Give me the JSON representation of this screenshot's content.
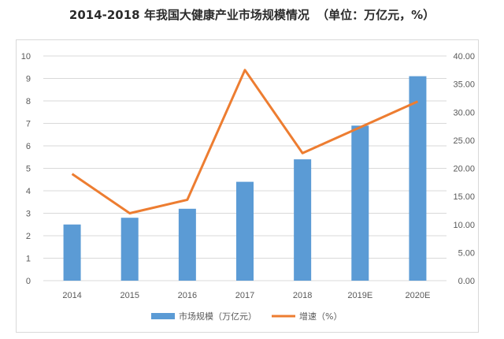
{
  "title": {
    "main": "2014-2018 年我国大健康产业市场规模情况",
    "unit": "（单位：万亿元，%）"
  },
  "colors": {
    "bar": "#5b9bd5",
    "line": "#ed7d31",
    "grid": "#d9d9d9",
    "axis_text": "#595959"
  },
  "chart_data": {
    "type": "bar",
    "categories": [
      "2014",
      "2015",
      "2016",
      "2017",
      "2018",
      "2019E",
      "2020E"
    ],
    "series": [
      {
        "name": "市场规模（万亿元）",
        "type": "bar",
        "axis": "left",
        "values": [
          2.5,
          2.8,
          3.2,
          4.4,
          5.4,
          6.9,
          9.1
        ]
      },
      {
        "name": "增速（%）",
        "type": "line",
        "axis": "right",
        "values": [
          19.0,
          12.0,
          14.4,
          37.5,
          22.7,
          27.3,
          31.9
        ]
      }
    ],
    "y_left": {
      "lim": [
        0,
        10
      ],
      "ticks": [
        "0",
        "1",
        "2",
        "3",
        "4",
        "5",
        "6",
        "7",
        "8",
        "9",
        "10"
      ]
    },
    "y_right": {
      "lim": [
        0,
        40
      ],
      "ticks": [
        "0.00",
        "5.00",
        "10.00",
        "15.00",
        "20.00",
        "25.00",
        "30.00",
        "35.00",
        "40.00"
      ]
    },
    "grid": true,
    "legend": "bottom"
  }
}
